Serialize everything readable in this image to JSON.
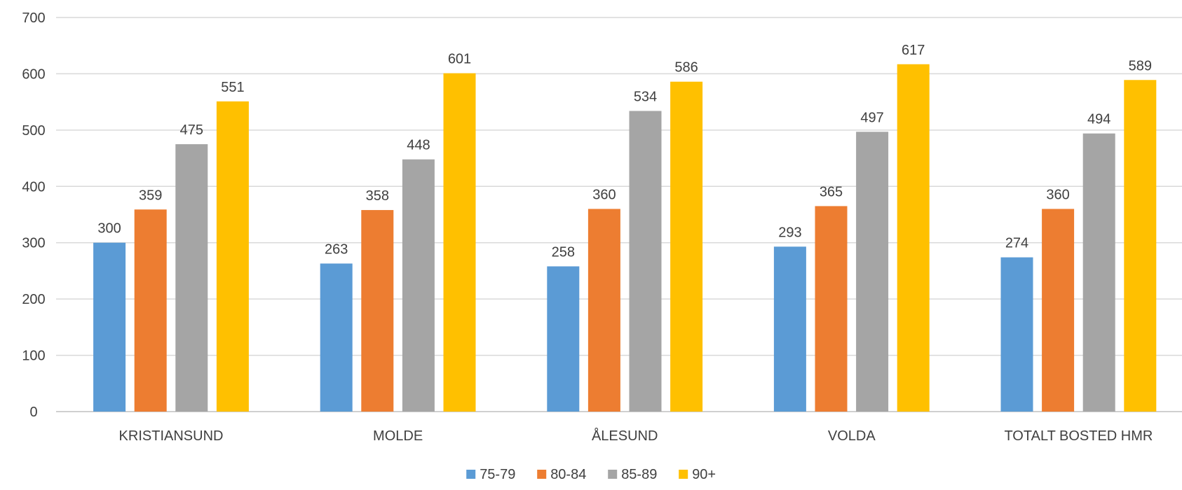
{
  "chart_data": {
    "type": "bar",
    "title": "",
    "xlabel": "",
    "ylabel": "",
    "ylim": [
      0,
      700
    ],
    "yticks": [
      0,
      100,
      200,
      300,
      400,
      500,
      600,
      700
    ],
    "grid": true,
    "legend_position": "bottom",
    "data_labels": true,
    "categories": [
      "KRISTIANSUND",
      "MOLDE",
      "ÅLESUND",
      "VOLDA",
      "TOTALT BOSTED HMR"
    ],
    "series": [
      {
        "name": "75-79",
        "color": "#5B9BD5",
        "values": [
          300,
          263,
          258,
          293,
          274
        ]
      },
      {
        "name": "80-84",
        "color": "#ED7D31",
        "values": [
          359,
          358,
          360,
          365,
          360
        ]
      },
      {
        "name": "85-89",
        "color": "#A5A5A5",
        "values": [
          475,
          448,
          534,
          497,
          494
        ]
      },
      {
        "name": "90+",
        "color": "#FFC000",
        "values": [
          551,
          601,
          586,
          617,
          589
        ]
      }
    ]
  },
  "colors": {
    "gridline": "#d9d9d9",
    "axis_line": "#bfbfbf",
    "text": "#404040"
  }
}
